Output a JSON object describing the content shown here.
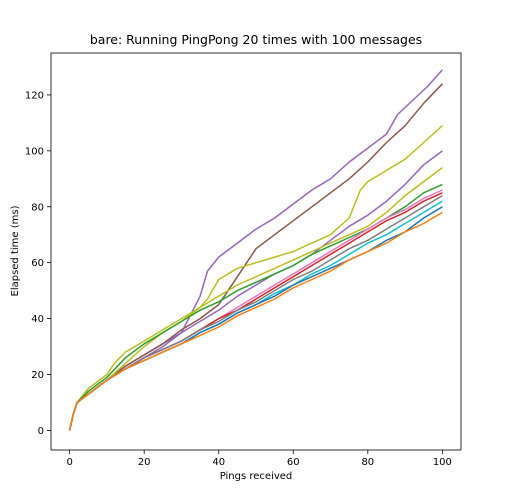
{
  "chart_data": {
    "type": "line",
    "title": "bare: Running PingPong 20 times with 100 messages",
    "xlabel": "Pings received",
    "ylabel": "Elapsed time (ms)",
    "xlim": [
      -5,
      105
    ],
    "ylim": [
      -7,
      135
    ],
    "xticks": [
      0,
      20,
      40,
      60,
      80,
      100
    ],
    "yticks": [
      0,
      20,
      40,
      60,
      80,
      100,
      120
    ],
    "grid": false,
    "legend": "none",
    "series": [
      {
        "color": "#9467bd",
        "points": [
          [
            0,
            0
          ],
          [
            1,
            6
          ],
          [
            2,
            10
          ],
          [
            5,
            13
          ],
          [
            10,
            18
          ],
          [
            15,
            23
          ],
          [
            20,
            27
          ],
          [
            25,
            31
          ],
          [
            30,
            35
          ],
          [
            35,
            48
          ],
          [
            37,
            57
          ],
          [
            40,
            62
          ],
          [
            45,
            67
          ],
          [
            50,
            72
          ],
          [
            55,
            76
          ],
          [
            60,
            81
          ],
          [
            65,
            86
          ],
          [
            70,
            90
          ],
          [
            75,
            96
          ],
          [
            80,
            101
          ],
          [
            85,
            106
          ],
          [
            88,
            113
          ],
          [
            92,
            118
          ],
          [
            96,
            123
          ],
          [
            100,
            129
          ]
        ]
      },
      {
        "color": "#8c564b",
        "points": [
          [
            0,
            0
          ],
          [
            1,
            6
          ],
          [
            2,
            10
          ],
          [
            5,
            13
          ],
          [
            10,
            18
          ],
          [
            15,
            23
          ],
          [
            20,
            27
          ],
          [
            25,
            31
          ],
          [
            30,
            36
          ],
          [
            35,
            40
          ],
          [
            40,
            45
          ],
          [
            45,
            55
          ],
          [
            50,
            65
          ],
          [
            55,
            70
          ],
          [
            58,
            73
          ],
          [
            60,
            75
          ],
          [
            65,
            80
          ],
          [
            70,
            85
          ],
          [
            75,
            90
          ],
          [
            80,
            96
          ],
          [
            85,
            103
          ],
          [
            90,
            109
          ],
          [
            95,
            117
          ],
          [
            100,
            124
          ]
        ]
      },
      {
        "color": "#bcbd22",
        "points": [
          [
            0,
            0
          ],
          [
            1,
            6
          ],
          [
            2,
            10
          ],
          [
            5,
            13
          ],
          [
            10,
            18
          ],
          [
            15,
            24
          ],
          [
            20,
            30
          ],
          [
            25,
            35
          ],
          [
            30,
            39
          ],
          [
            35,
            44
          ],
          [
            37,
            47
          ],
          [
            40,
            54
          ],
          [
            45,
            58
          ],
          [
            50,
            60
          ],
          [
            55,
            62
          ],
          [
            60,
            64
          ],
          [
            65,
            67
          ],
          [
            70,
            70
          ],
          [
            75,
            76
          ],
          [
            78,
            86
          ],
          [
            80,
            89
          ],
          [
            85,
            93
          ],
          [
            90,
            97
          ],
          [
            95,
            103
          ],
          [
            100,
            109
          ]
        ]
      },
      {
        "color": "#9467bd",
        "points": [
          [
            0,
            0
          ],
          [
            1,
            6
          ],
          [
            2,
            10
          ],
          [
            5,
            13
          ],
          [
            10,
            18
          ],
          [
            15,
            22
          ],
          [
            20,
            26
          ],
          [
            25,
            30
          ],
          [
            30,
            35
          ],
          [
            35,
            39
          ],
          [
            40,
            43
          ],
          [
            45,
            48
          ],
          [
            50,
            52
          ],
          [
            55,
            56
          ],
          [
            60,
            59
          ],
          [
            65,
            63
          ],
          [
            70,
            68
          ],
          [
            75,
            73
          ],
          [
            80,
            77
          ],
          [
            85,
            82
          ],
          [
            90,
            88
          ],
          [
            95,
            95
          ],
          [
            100,
            100
          ]
        ]
      },
      {
        "color": "#bcbd22",
        "points": [
          [
            0,
            0
          ],
          [
            1,
            6
          ],
          [
            2,
            10
          ],
          [
            5,
            15
          ],
          [
            10,
            20
          ],
          [
            12,
            24
          ],
          [
            15,
            28
          ],
          [
            20,
            32
          ],
          [
            25,
            36
          ],
          [
            30,
            40
          ],
          [
            35,
            44
          ],
          [
            40,
            48
          ],
          [
            45,
            52
          ],
          [
            50,
            55
          ],
          [
            55,
            58
          ],
          [
            60,
            61
          ],
          [
            65,
            64
          ],
          [
            70,
            67
          ],
          [
            75,
            70
          ],
          [
            80,
            73
          ],
          [
            85,
            78
          ],
          [
            90,
            84
          ],
          [
            95,
            89
          ],
          [
            100,
            94
          ]
        ]
      },
      {
        "color": "#2ca02c",
        "points": [
          [
            0,
            0
          ],
          [
            1,
            6
          ],
          [
            2,
            10
          ],
          [
            5,
            14
          ],
          [
            10,
            19
          ],
          [
            15,
            26
          ],
          [
            20,
            31
          ],
          [
            25,
            35
          ],
          [
            30,
            39
          ],
          [
            35,
            43
          ],
          [
            40,
            46
          ],
          [
            45,
            50
          ],
          [
            50,
            53
          ],
          [
            55,
            56
          ],
          [
            60,
            59
          ],
          [
            65,
            63
          ],
          [
            70,
            66
          ],
          [
            75,
            69
          ],
          [
            80,
            72
          ],
          [
            85,
            76
          ],
          [
            90,
            80
          ],
          [
            95,
            85
          ],
          [
            100,
            88
          ]
        ]
      },
      {
        "color": "#e377c2",
        "points": [
          [
            0,
            0
          ],
          [
            1,
            6
          ],
          [
            2,
            10
          ],
          [
            5,
            13
          ],
          [
            10,
            18
          ],
          [
            15,
            22
          ],
          [
            20,
            26
          ],
          [
            25,
            29
          ],
          [
            30,
            32
          ],
          [
            35,
            36
          ],
          [
            40,
            40
          ],
          [
            45,
            44
          ],
          [
            50,
            48
          ],
          [
            55,
            52
          ],
          [
            60,
            56
          ],
          [
            65,
            60
          ],
          [
            70,
            64
          ],
          [
            75,
            68
          ],
          [
            80,
            72
          ],
          [
            85,
            76
          ],
          [
            90,
            79
          ],
          [
            95,
            83
          ],
          [
            100,
            86
          ]
        ]
      },
      {
        "color": "#d62728",
        "points": [
          [
            0,
            0
          ],
          [
            1,
            6
          ],
          [
            2,
            10
          ],
          [
            5,
            13
          ],
          [
            10,
            18
          ],
          [
            15,
            22
          ],
          [
            20,
            26
          ],
          [
            25,
            29
          ],
          [
            30,
            32
          ],
          [
            35,
            36
          ],
          [
            40,
            40
          ],
          [
            45,
            43
          ],
          [
            50,
            47
          ],
          [
            55,
            51
          ],
          [
            60,
            55
          ],
          [
            65,
            59
          ],
          [
            70,
            63
          ],
          [
            75,
            67
          ],
          [
            80,
            71
          ],
          [
            85,
            75
          ],
          [
            90,
            78
          ],
          [
            95,
            82
          ],
          [
            100,
            85
          ]
        ]
      },
      {
        "color": "#7f7f7f",
        "points": [
          [
            0,
            0
          ],
          [
            1,
            6
          ],
          [
            2,
            10
          ],
          [
            5,
            13
          ],
          [
            10,
            18
          ],
          [
            15,
            22
          ],
          [
            20,
            26
          ],
          [
            25,
            29
          ],
          [
            30,
            32
          ],
          [
            35,
            36
          ],
          [
            40,
            39
          ],
          [
            45,
            43
          ],
          [
            50,
            46
          ],
          [
            55,
            50
          ],
          [
            60,
            54
          ],
          [
            65,
            57
          ],
          [
            70,
            61
          ],
          [
            75,
            65
          ],
          [
            80,
            68
          ],
          [
            85,
            72
          ],
          [
            90,
            76
          ],
          [
            95,
            80
          ],
          [
            100,
            84
          ]
        ]
      },
      {
        "color": "#17becf",
        "points": [
          [
            0,
            0
          ],
          [
            1,
            6
          ],
          [
            2,
            10
          ],
          [
            5,
            13
          ],
          [
            10,
            18
          ],
          [
            15,
            22
          ],
          [
            20,
            25
          ],
          [
            25,
            28
          ],
          [
            30,
            31
          ],
          [
            35,
            35
          ],
          [
            40,
            38
          ],
          [
            45,
            42
          ],
          [
            50,
            45
          ],
          [
            55,
            49
          ],
          [
            60,
            52
          ],
          [
            65,
            56
          ],
          [
            70,
            59
          ],
          [
            75,
            63
          ],
          [
            80,
            67
          ],
          [
            85,
            70
          ],
          [
            90,
            74
          ],
          [
            95,
            78
          ],
          [
            100,
            82
          ]
        ]
      },
      {
        "color": "#1f77b4",
        "points": [
          [
            0,
            0
          ],
          [
            1,
            6
          ],
          [
            2,
            10
          ],
          [
            5,
            13
          ],
          [
            10,
            18
          ],
          [
            15,
            22
          ],
          [
            20,
            25
          ],
          [
            25,
            28
          ],
          [
            30,
            31
          ],
          [
            35,
            35
          ],
          [
            40,
            38
          ],
          [
            45,
            42
          ],
          [
            50,
            45
          ],
          [
            55,
            48
          ],
          [
            60,
            52
          ],
          [
            65,
            55
          ],
          [
            70,
            58
          ],
          [
            75,
            61
          ],
          [
            80,
            64
          ],
          [
            85,
            68
          ],
          [
            90,
            71
          ],
          [
            95,
            76
          ],
          [
            100,
            80
          ]
        ]
      },
      {
        "color": "#ff7f0e",
        "points": [
          [
            0,
            0
          ],
          [
            1,
            6
          ],
          [
            2,
            10
          ],
          [
            5,
            13
          ],
          [
            10,
            18
          ],
          [
            15,
            22
          ],
          [
            20,
            25
          ],
          [
            25,
            28
          ],
          [
            30,
            31
          ],
          [
            35,
            34
          ],
          [
            40,
            37
          ],
          [
            45,
            41
          ],
          [
            50,
            44
          ],
          [
            55,
            47
          ],
          [
            60,
            51
          ],
          [
            65,
            54
          ],
          [
            70,
            57
          ],
          [
            75,
            61
          ],
          [
            80,
            64
          ],
          [
            85,
            67
          ],
          [
            90,
            71
          ],
          [
            95,
            74
          ],
          [
            100,
            78
          ]
        ]
      }
    ]
  }
}
